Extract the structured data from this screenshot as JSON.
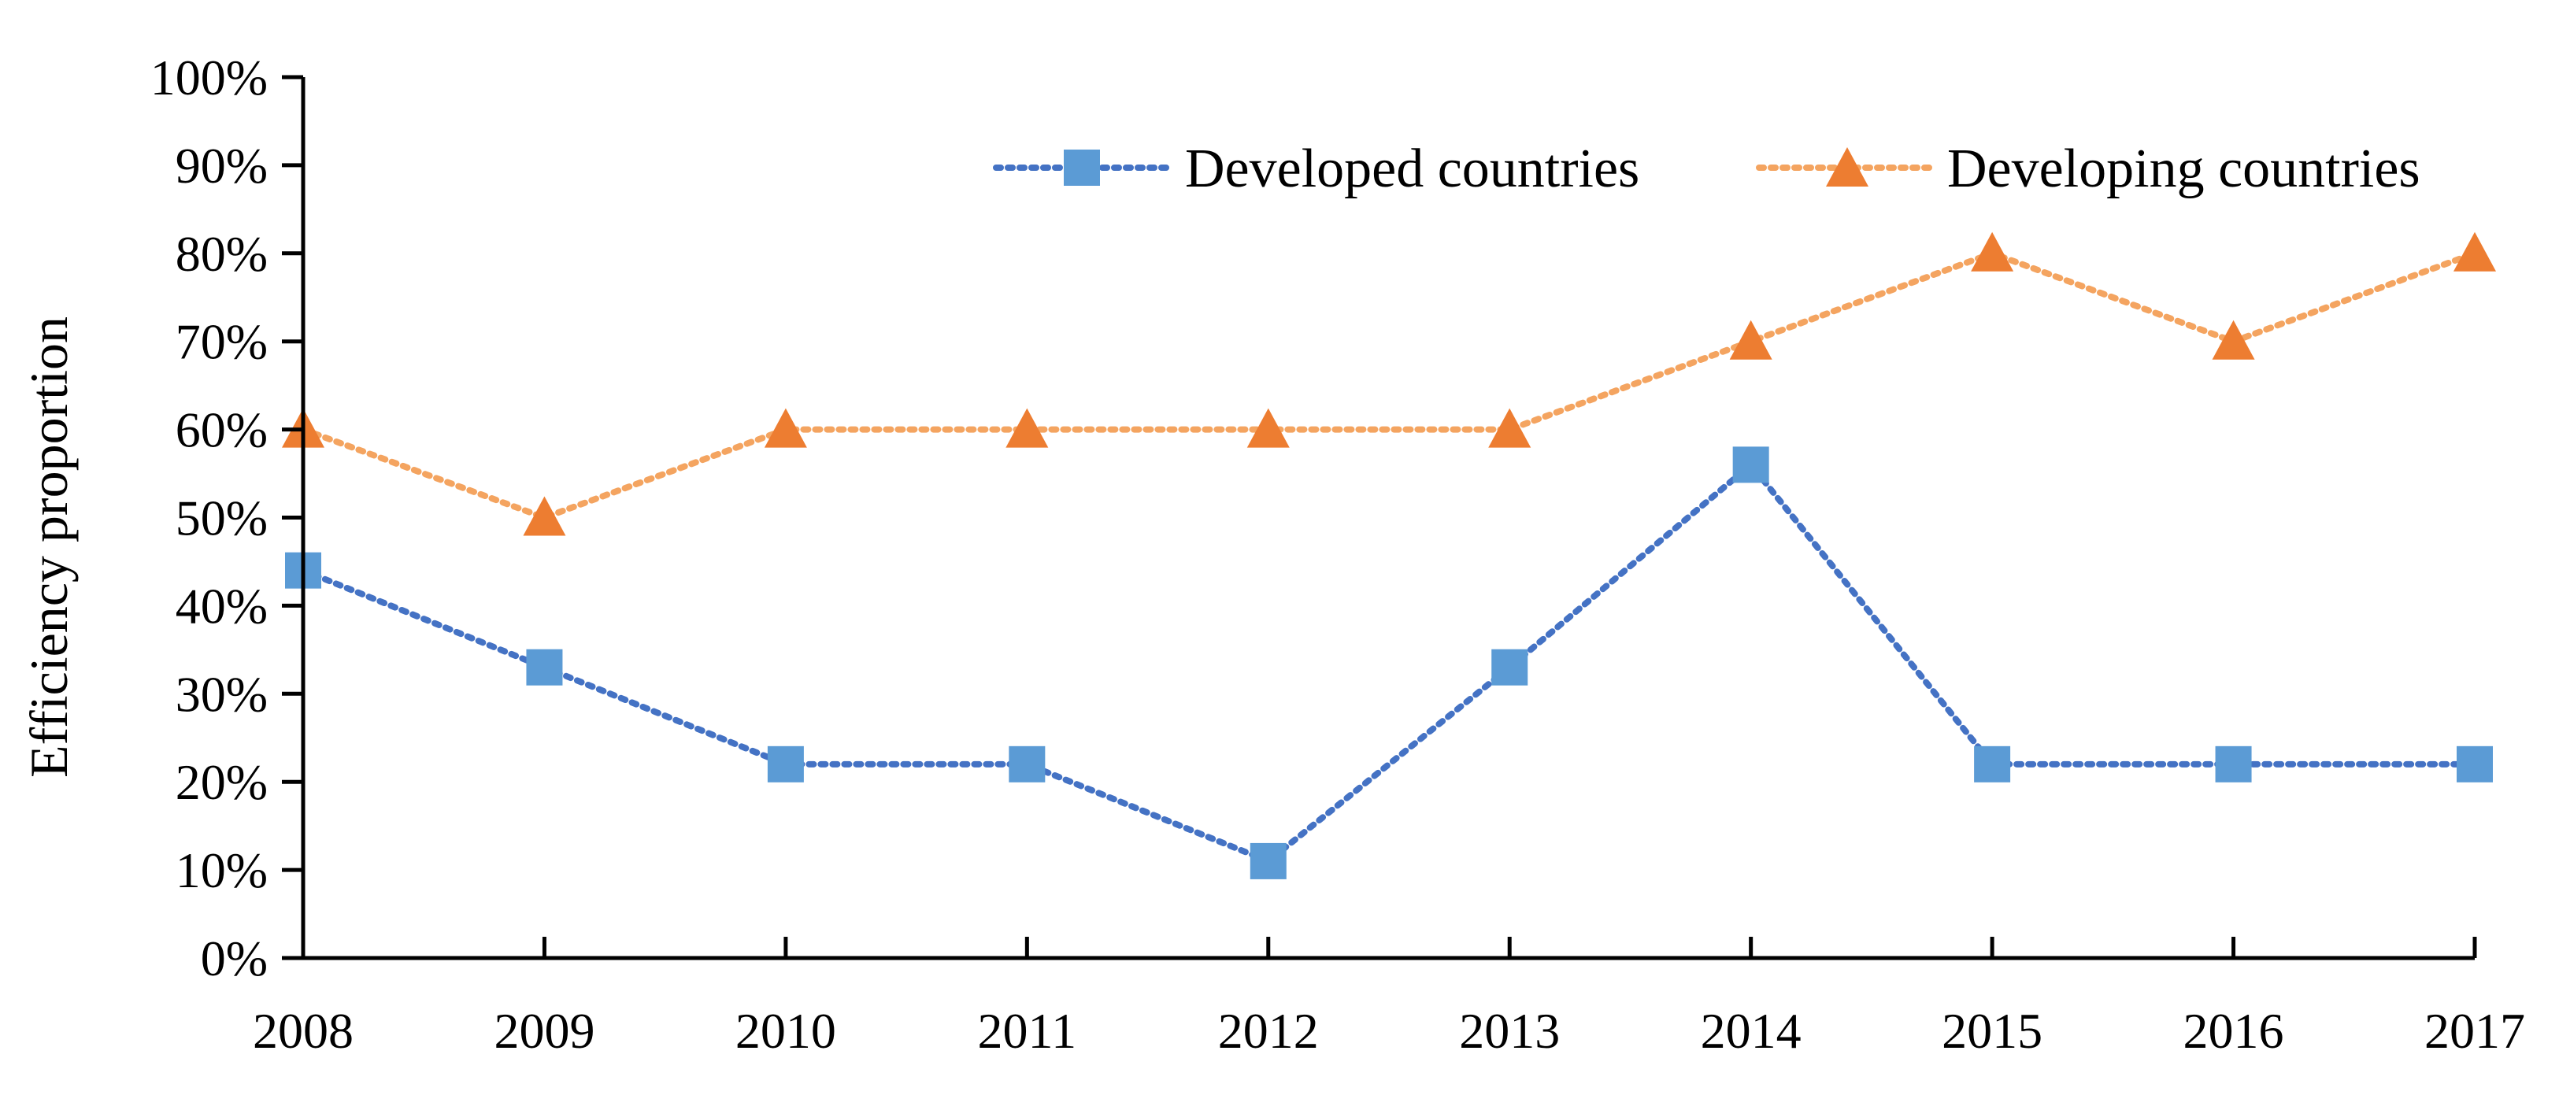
{
  "chart_data": {
    "type": "line",
    "title": "",
    "xlabel": "",
    "ylabel": "Efficiency proportion",
    "categories": [
      "2008",
      "2009",
      "2010",
      "2011",
      "2012",
      "2013",
      "2014",
      "2015",
      "2016",
      "2017"
    ],
    "y_ticks": [
      "0%",
      "10%",
      "20%",
      "30%",
      "40%",
      "50%",
      "60%",
      "70%",
      "80%",
      "90%",
      "100%"
    ],
    "ylim": [
      0,
      100
    ],
    "grid": false,
    "legend_position": "top-right",
    "series": [
      {
        "name": "Developed countries",
        "values": [
          44,
          33,
          22,
          22,
          11,
          33,
          56,
          22,
          22,
          22
        ],
        "color": "#4472C4",
        "marker_color": "#5B9BD5",
        "marker": "square",
        "line_style": "dotted"
      },
      {
        "name": "Developing countries",
        "values": [
          60,
          50,
          60,
          60,
          60,
          60,
          70,
          80,
          70,
          80
        ],
        "color": "#F4A460",
        "marker_color": "#ED7D31",
        "marker": "triangle",
        "line_style": "dotted"
      }
    ]
  }
}
